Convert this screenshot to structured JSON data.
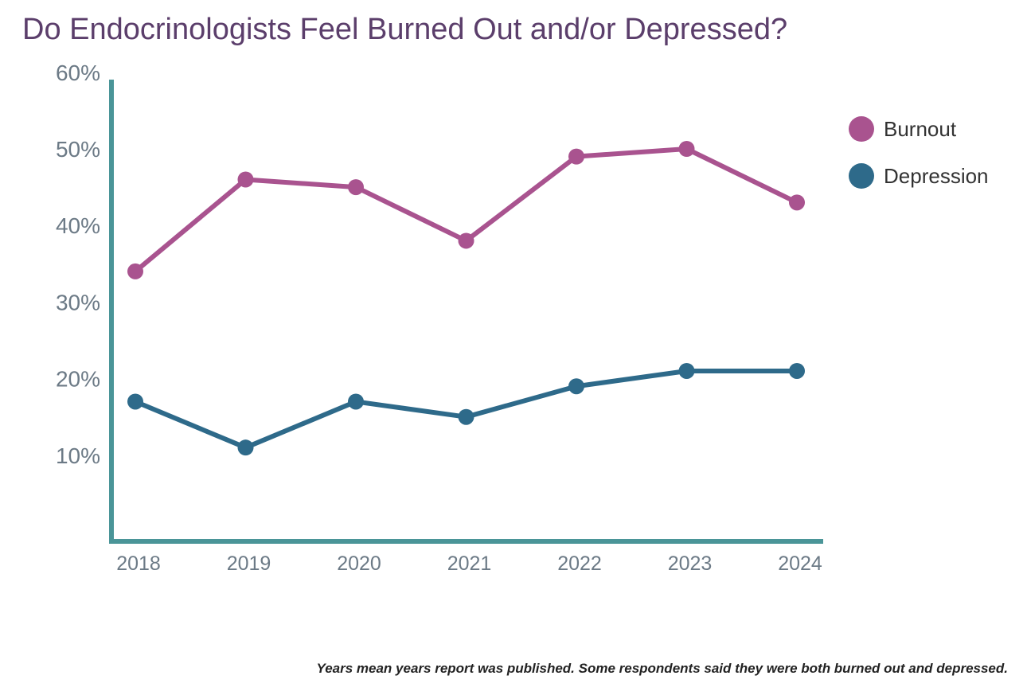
{
  "title": "Do Endocrinologists Feel Burned Out and/or Depressed?",
  "footnote": "Years mean years report was published. Some respondents said they were both burned out and depressed.",
  "colors": {
    "axis": "#4a9598",
    "burnout": "#a9538f",
    "depression": "#2e6a8a",
    "title": "#5b3e6b",
    "tick": "#6c7a86"
  },
  "chart_data": {
    "type": "line",
    "title": "Do Endocrinologists Feel Burned Out and/or Depressed?",
    "xlabel": "",
    "ylabel": "",
    "x": [
      "2018",
      "2019",
      "2020",
      "2021",
      "2022",
      "2023",
      "2024"
    ],
    "y_ticks": [
      "10%",
      "20%",
      "30%",
      "40%",
      "50%",
      "60%"
    ],
    "ylim": [
      0,
      60
    ],
    "grid": false,
    "legend": "right",
    "series": [
      {
        "name": "Burnout",
        "values": [
          34,
          46,
          45,
          38,
          49,
          50,
          43
        ]
      },
      {
        "name": "Depression",
        "values": [
          17,
          11,
          17,
          15,
          19,
          21,
          21
        ]
      }
    ]
  }
}
